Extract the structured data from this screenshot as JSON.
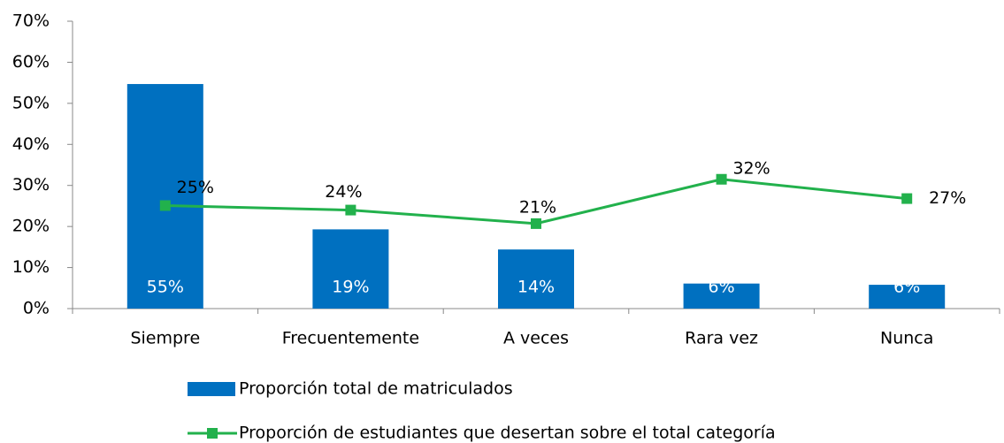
{
  "chart_data": {
    "type": "bar-line",
    "categories": [
      "Siempre",
      "Frecuentemente",
      "A veces",
      "Rara vez",
      "Nunca"
    ],
    "series": [
      {
        "name": "Proporción total de matriculados",
        "type": "bar",
        "color": "#0070c0",
        "values": [
          54.7,
          19.3,
          14.4,
          6.1,
          5.8
        ],
        "value_labels": [
          "55%",
          "19%",
          "14%",
          "6%",
          "6%"
        ]
      },
      {
        "name": "Proporción de estudiantes que desertan sobre el total categoría",
        "type": "line",
        "color": "#22b14c",
        "values": [
          25.1,
          24,
          20.7,
          31.5,
          26.8
        ],
        "value_labels": [
          "25%",
          "24%",
          "21%",
          "32%",
          "27%"
        ]
      }
    ],
    "ylim": [
      0,
      70
    ],
    "yticks": [
      {
        "value": 0,
        "label": "0%"
      },
      {
        "value": 10,
        "label": "10%"
      },
      {
        "value": 20,
        "label": "20%"
      },
      {
        "value": 30,
        "label": "30%"
      },
      {
        "value": 40,
        "label": "40%"
      },
      {
        "value": 50,
        "label": "50%"
      },
      {
        "value": 60,
        "label": "60%"
      },
      {
        "value": 70,
        "label": "70%"
      }
    ],
    "grid": false,
    "legend": "bottom"
  }
}
